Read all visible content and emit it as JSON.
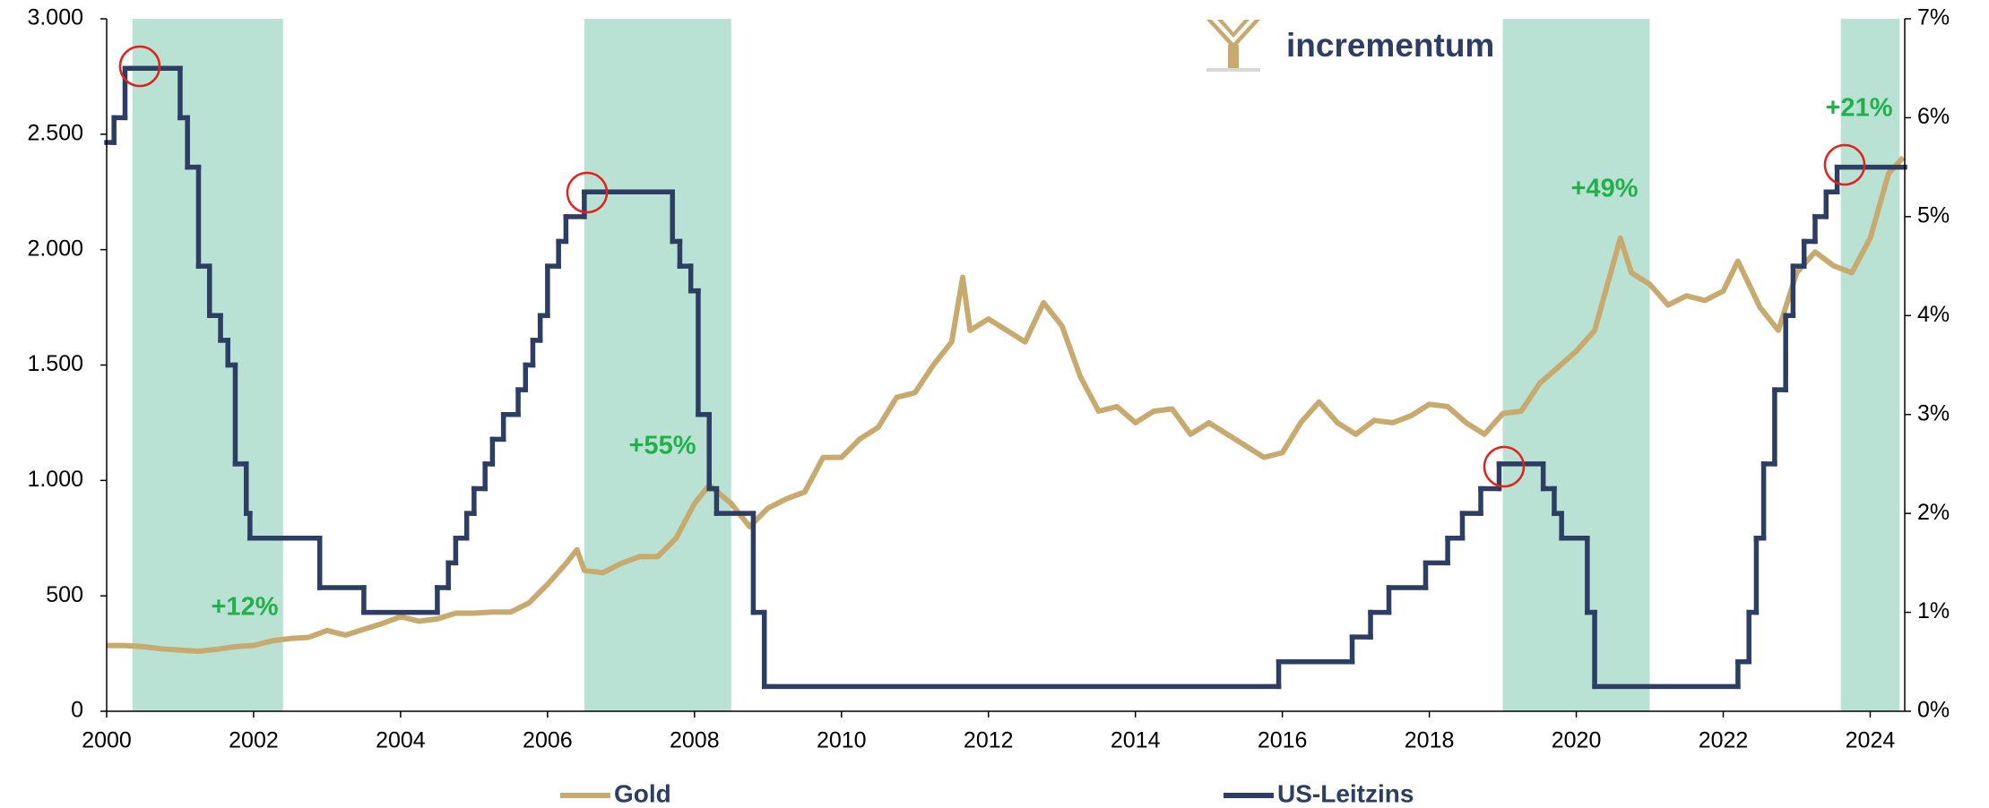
{
  "chart_data": {
    "type": "line",
    "brand": "incrementum",
    "xlim": [
      2000,
      2024.47
    ],
    "xticks": [
      2000,
      2002,
      2004,
      2006,
      2008,
      2010,
      2012,
      2014,
      2016,
      2018,
      2020,
      2022,
      2024
    ],
    "ylim": [
      0,
      3000
    ],
    "yticks": [
      0,
      500,
      {
        "value": 1000,
        "label": "1.000"
      },
      {
        "value": 1500,
        "label": "1.500"
      },
      {
        "value": 2000,
        "label": "2.000"
      },
      {
        "value": 2500,
        "label": "2.500"
      },
      {
        "value": 3000,
        "label": "3.000"
      }
    ],
    "y2lim": [
      0,
      7
    ],
    "y2ticks": [
      {
        "value": 0,
        "label": "0%"
      },
      {
        "value": 1,
        "label": "1%"
      },
      {
        "value": 2,
        "label": "2%"
      },
      {
        "value": 3,
        "label": "3%"
      },
      {
        "value": 4,
        "label": "4%"
      },
      {
        "value": 5,
        "label": "5%"
      },
      {
        "value": 6,
        "label": "6%"
      },
      {
        "value": 7,
        "label": "7%"
      }
    ],
    "grid": false,
    "shade_color": "#b9e2d4",
    "shaded_periods": [
      {
        "start": 2000.35,
        "end": 2002.4
      },
      {
        "start": 2006.5,
        "end": 2008.5
      },
      {
        "start": 2019.0,
        "end": 2021.0
      },
      {
        "start": 2023.6,
        "end": 2024.4
      }
    ],
    "annotations": [
      "+12%",
      "+55%",
      "+49%",
      "+21%"
    ],
    "annotation_color": "#22b04b",
    "legend": "bottom",
    "series": [
      {
        "name": "Gold",
        "color": "#c8aa6e",
        "x": [
          2000.0,
          2000.25,
          2000.5,
          2000.75,
          2001.0,
          2001.25,
          2001.5,
          2001.75,
          2002.0,
          2002.25,
          2002.5,
          2002.75,
          2003.0,
          2003.25,
          2003.5,
          2003.75,
          2004.0,
          2004.25,
          2004.5,
          2004.75,
          2005.0,
          2005.25,
          2005.5,
          2005.75,
          2006.0,
          2006.25,
          2006.4,
          2006.5,
          2006.75,
          2007.0,
          2007.25,
          2007.5,
          2007.75,
          2008.0,
          2008.2,
          2008.5,
          2008.75,
          2009.0,
          2009.25,
          2009.5,
          2009.75,
          2010.0,
          2010.25,
          2010.5,
          2010.75,
          2011.0,
          2011.25,
          2011.5,
          2011.65,
          2011.75,
          2012.0,
          2012.25,
          2012.5,
          2012.75,
          2013.0,
          2013.25,
          2013.5,
          2013.75,
          2014.0,
          2014.25,
          2014.5,
          2014.75,
          2015.0,
          2015.25,
          2015.5,
          2015.75,
          2016.0,
          2016.25,
          2016.5,
          2016.75,
          2017.0,
          2017.25,
          2017.5,
          2017.75,
          2018.0,
          2018.25,
          2018.5,
          2018.75,
          2019.0,
          2019.25,
          2019.5,
          2019.75,
          2020.0,
          2020.25,
          2020.6,
          2020.75,
          2021.0,
          2021.25,
          2021.5,
          2021.75,
          2022.0,
          2022.2,
          2022.5,
          2022.75,
          2023.0,
          2023.25,
          2023.5,
          2023.75,
          2024.0,
          2024.25,
          2024.45
        ],
        "values": [
          285,
          285,
          280,
          270,
          265,
          260,
          268,
          280,
          285,
          305,
          315,
          320,
          350,
          330,
          355,
          380,
          410,
          390,
          400,
          425,
          425,
          430,
          430,
          470,
          550,
          640,
          700,
          610,
          600,
          640,
          670,
          670,
          750,
          900,
          980,
          900,
          800,
          880,
          920,
          950,
          1100,
          1100,
          1180,
          1230,
          1360,
          1380,
          1500,
          1600,
          1880,
          1650,
          1700,
          1650,
          1600,
          1770,
          1670,
          1450,
          1300,
          1320,
          1250,
          1300,
          1310,
          1200,
          1250,
          1200,
          1150,
          1100,
          1120,
          1250,
          1340,
          1250,
          1200,
          1260,
          1250,
          1280,
          1330,
          1320,
          1250,
          1200,
          1290,
          1300,
          1420,
          1490,
          1560,
          1650,
          2050,
          1900,
          1850,
          1760,
          1800,
          1780,
          1820,
          1950,
          1750,
          1650,
          1900,
          1990,
          1930,
          1900,
          2050,
          2330,
          2400
        ]
      },
      {
        "name": "US-Leitzins",
        "color": "#2c3e63",
        "axis": "y2",
        "step": true,
        "x": [
          2000.0,
          2000.1,
          2000.25,
          2001.0,
          2001.1,
          2001.25,
          2001.4,
          2001.55,
          2001.65,
          2001.75,
          2001.9,
          2001.95,
          2002.9,
          2003.5,
          2004.5,
          2004.65,
          2004.75,
          2004.9,
          2005.0,
          2005.15,
          2005.25,
          2005.4,
          2005.6,
          2005.7,
          2005.8,
          2005.9,
          2006.0,
          2006.15,
          2006.25,
          2006.5,
          2007.7,
          2007.8,
          2007.95,
          2008.05,
          2008.2,
          2008.3,
          2008.8,
          2008.95,
          2015.95,
          2016.95,
          2017.2,
          2017.45,
          2017.95,
          2018.25,
          2018.45,
          2018.7,
          2018.95,
          2019.55,
          2019.7,
          2019.8,
          2020.15,
          2020.25,
          2022.2,
          2022.35,
          2022.45,
          2022.55,
          2022.7,
          2022.85,
          2022.95,
          2023.1,
          2023.25,
          2023.4,
          2023.55
        ],
        "values": [
          5.75,
          6.0,
          6.5,
          6.0,
          5.5,
          4.5,
          4.0,
          3.75,
          3.5,
          2.5,
          2.0,
          1.75,
          1.25,
          1.0,
          1.25,
          1.5,
          1.75,
          2.0,
          2.25,
          2.5,
          2.75,
          3.0,
          3.25,
          3.5,
          3.75,
          4.0,
          4.5,
          4.75,
          5.0,
          5.25,
          4.75,
          4.5,
          4.25,
          3.0,
          2.25,
          2.0,
          1.0,
          0.25,
          0.5,
          0.75,
          1.0,
          1.25,
          1.5,
          1.75,
          2.0,
          2.25,
          2.5,
          2.25,
          2.0,
          1.75,
          1.0,
          0.25,
          0.5,
          1.0,
          1.75,
          2.5,
          3.25,
          4.0,
          4.5,
          4.75,
          5.0,
          5.25,
          5.5
        ]
      }
    ]
  }
}
